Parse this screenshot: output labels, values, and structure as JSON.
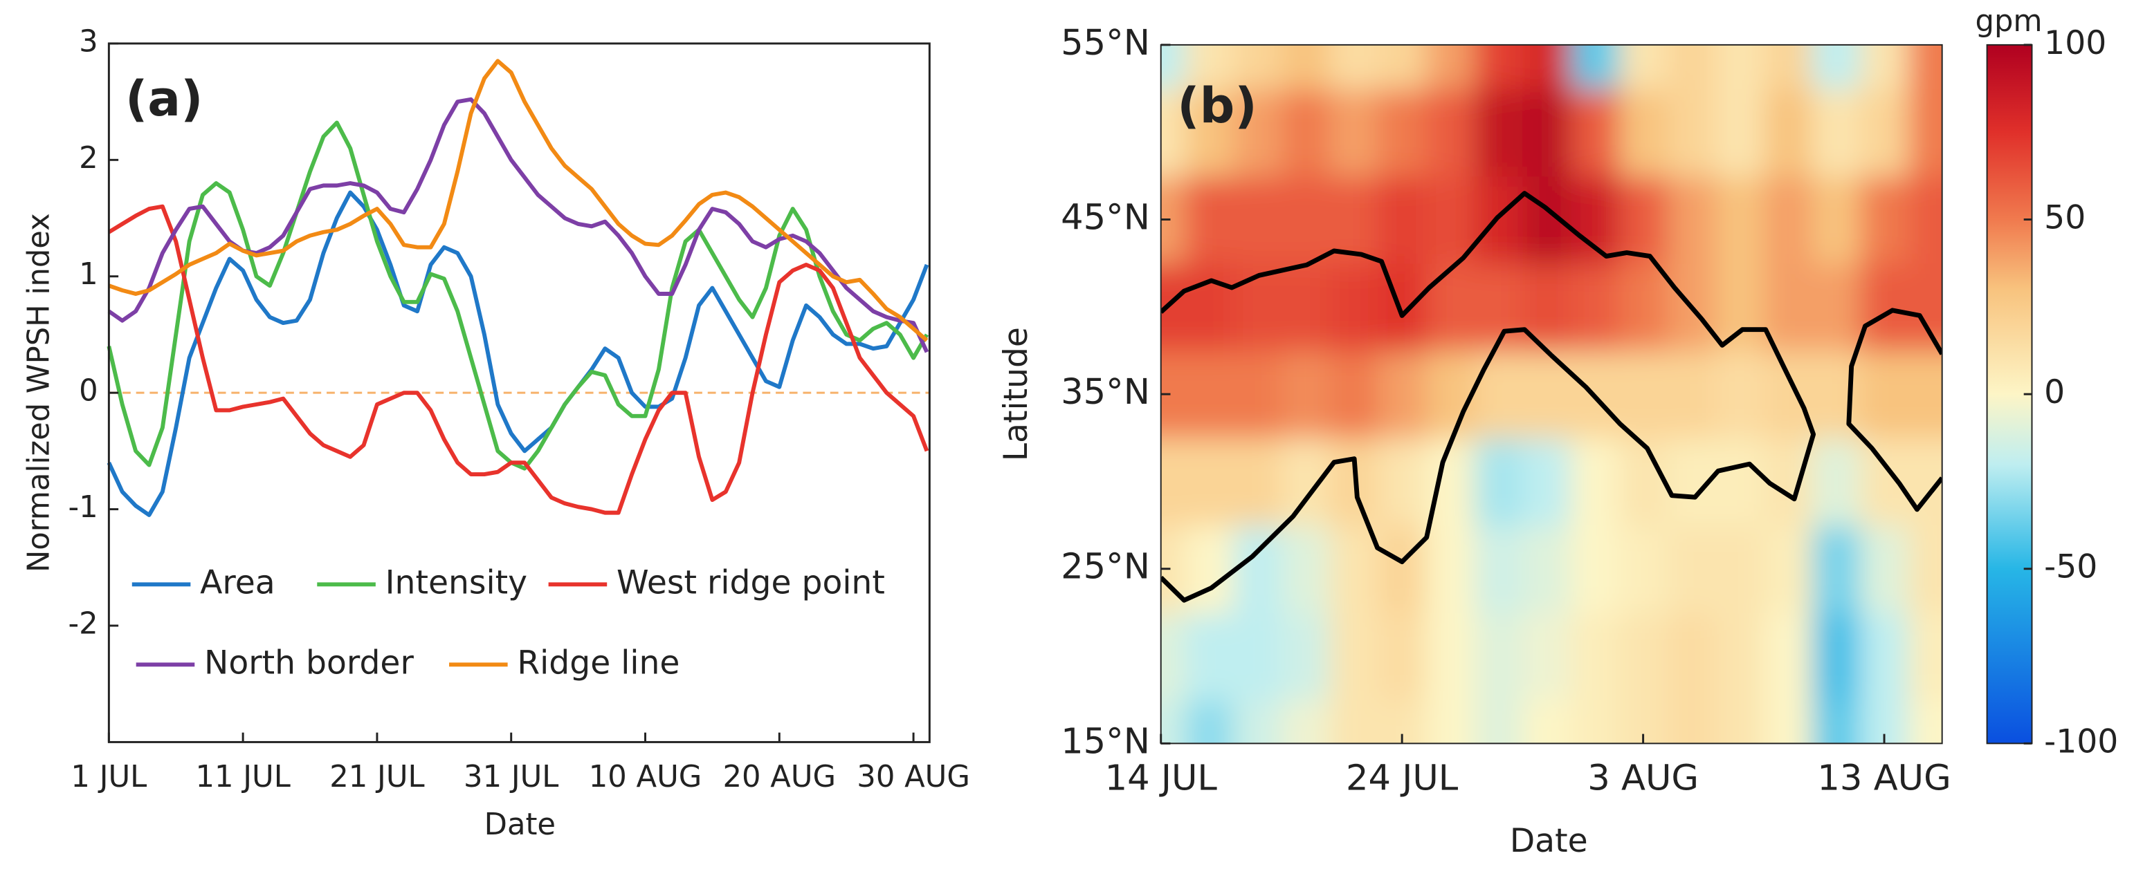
{
  "chart_data": [
    {
      "type": "line",
      "annotation": "(a)",
      "xlabel": "Date",
      "ylabel": "Normalized WPSH index",
      "x": [
        0,
        1,
        2,
        3,
        4,
        5,
        6,
        7,
        8,
        9,
        10,
        11,
        12,
        13,
        14,
        15,
        16,
        17,
        18,
        19,
        20,
        21,
        22,
        23,
        24,
        25,
        26,
        27,
        28,
        29,
        30,
        31,
        32,
        33,
        34,
        35,
        36,
        37,
        38,
        39,
        40,
        41,
        42,
        43,
        44,
        45,
        46,
        47,
        48,
        49,
        50,
        51,
        52,
        53,
        54,
        55,
        56,
        57,
        58,
        59,
        60,
        61
      ],
      "xlim": [
        0,
        61.2
      ],
      "xticks": [
        {
          "value": 0,
          "label": "1 JUL"
        },
        {
          "value": 10,
          "label": "11 JUL"
        },
        {
          "value": 20,
          "label": "21 JUL"
        },
        {
          "value": 30,
          "label": "31 JUL"
        },
        {
          "value": 40,
          "label": "10 AUG"
        },
        {
          "value": 50,
          "label": "20 AUG"
        },
        {
          "value": 60,
          "label": "30 AUG"
        }
      ],
      "ylim": [
        -3,
        3
      ],
      "yticks": [
        -2,
        -1,
        0,
        1,
        2,
        3
      ],
      "hline": 0,
      "hline_color": "#f6b26b",
      "series": [
        {
          "name": "Area",
          "color": "#1f78c8",
          "values": [
            -0.6,
            -0.85,
            -0.97,
            -1.05,
            -0.85,
            -0.3,
            0.3,
            0.6,
            0.9,
            1.15,
            1.05,
            0.8,
            0.65,
            0.6,
            0.62,
            0.8,
            1.2,
            1.5,
            1.72,
            1.6,
            1.4,
            1.1,
            0.75,
            0.7,
            1.1,
            1.25,
            1.2,
            1.0,
            0.5,
            -0.1,
            -0.35,
            -0.5,
            -0.4,
            -0.3,
            -0.1,
            0.05,
            0.2,
            0.38,
            0.3,
            0.0,
            -0.12,
            -0.12,
            -0.05,
            0.3,
            0.75,
            0.9,
            0.7,
            0.5,
            0.3,
            0.1,
            0.05,
            0.45,
            0.75,
            0.65,
            0.5,
            0.42,
            0.42,
            0.38,
            0.4,
            0.6,
            0.8,
            1.1
          ]
        },
        {
          "name": "Intensity",
          "color": "#4cbb4a",
          "values": [
            0.4,
            -0.1,
            -0.5,
            -0.62,
            -0.3,
            0.5,
            1.3,
            1.7,
            1.8,
            1.72,
            1.4,
            1.0,
            0.92,
            1.2,
            1.55,
            1.9,
            2.2,
            2.32,
            2.1,
            1.7,
            1.3,
            1.0,
            0.78,
            0.78,
            1.02,
            0.98,
            0.7,
            0.3,
            -0.1,
            -0.5,
            -0.6,
            -0.65,
            -0.5,
            -0.3,
            -0.1,
            0.05,
            0.18,
            0.15,
            -0.1,
            -0.2,
            -0.2,
            0.2,
            0.9,
            1.3,
            1.4,
            1.2,
            1.0,
            0.8,
            0.65,
            0.9,
            1.35,
            1.58,
            1.4,
            1.0,
            0.7,
            0.5,
            0.45,
            0.55,
            0.6,
            0.5,
            0.3,
            0.5
          ]
        },
        {
          "name": "West ridge point",
          "color": "#e8332c",
          "values": [
            1.38,
            1.45,
            1.52,
            1.58,
            1.6,
            1.3,
            0.8,
            0.3,
            -0.15,
            -0.15,
            -0.12,
            -0.1,
            -0.08,
            -0.05,
            -0.2,
            -0.35,
            -0.45,
            -0.5,
            -0.55,
            -0.45,
            -0.1,
            -0.05,
            0.0,
            0.0,
            -0.15,
            -0.4,
            -0.6,
            -0.7,
            -0.7,
            -0.68,
            -0.6,
            -0.6,
            -0.75,
            -0.9,
            -0.95,
            -0.98,
            -1.0,
            -1.03,
            -1.03,
            -0.7,
            -0.4,
            -0.15,
            0.0,
            0.0,
            -0.55,
            -0.92,
            -0.85,
            -0.6,
            0.0,
            0.5,
            0.95,
            1.05,
            1.1,
            1.05,
            0.9,
            0.6,
            0.3,
            0.15,
            0.0,
            -0.1,
            -0.2,
            -0.5
          ]
        },
        {
          "name": "North border",
          "color": "#7d3fa6",
          "values": [
            0.7,
            0.62,
            0.7,
            0.9,
            1.2,
            1.4,
            1.58,
            1.6,
            1.45,
            1.3,
            1.22,
            1.2,
            1.25,
            1.35,
            1.55,
            1.75,
            1.78,
            1.78,
            1.8,
            1.78,
            1.72,
            1.58,
            1.55,
            1.75,
            2.0,
            2.3,
            2.5,
            2.52,
            2.4,
            2.2,
            2.0,
            1.85,
            1.7,
            1.6,
            1.5,
            1.45,
            1.43,
            1.47,
            1.35,
            1.2,
            1.0,
            0.85,
            0.85,
            1.1,
            1.4,
            1.58,
            1.55,
            1.45,
            1.3,
            1.25,
            1.32,
            1.35,
            1.3,
            1.2,
            1.05,
            0.9,
            0.8,
            0.7,
            0.65,
            0.62,
            0.6,
            0.35
          ]
        },
        {
          "name": "Ridge line",
          "color": "#f28a14",
          "values": [
            0.92,
            0.88,
            0.85,
            0.88,
            0.95,
            1.02,
            1.1,
            1.15,
            1.2,
            1.28,
            1.22,
            1.18,
            1.2,
            1.22,
            1.3,
            1.35,
            1.38,
            1.4,
            1.45,
            1.52,
            1.58,
            1.45,
            1.27,
            1.25,
            1.25,
            1.45,
            1.9,
            2.4,
            2.7,
            2.85,
            2.75,
            2.5,
            2.3,
            2.1,
            1.95,
            1.85,
            1.75,
            1.6,
            1.45,
            1.35,
            1.28,
            1.27,
            1.35,
            1.48,
            1.62,
            1.7,
            1.72,
            1.68,
            1.6,
            1.5,
            1.4,
            1.3,
            1.2,
            1.1,
            1.0,
            0.95,
            0.97,
            0.85,
            0.72,
            0.65,
            0.55,
            0.45
          ]
        }
      ]
    },
    {
      "type": "heatmap",
      "annotation": "(b)",
      "xlabel": "Date",
      "ylabel": "Latitude",
      "colorbar_label": "gpm",
      "x": [
        0,
        2,
        4,
        6,
        8,
        10,
        12,
        14,
        16,
        18,
        20,
        22,
        24,
        26,
        28,
        30,
        32
      ],
      "y": [
        15,
        20,
        25,
        30,
        35,
        40,
        45,
        50,
        55
      ],
      "z": [
        [
          -15,
          -30,
          -15,
          -5,
          10,
          10,
          0,
          -10,
          0,
          5,
          10,
          15,
          10,
          0,
          -40,
          -20,
          0
        ],
        [
          -10,
          -20,
          -20,
          -15,
          10,
          15,
          0,
          -10,
          -5,
          5,
          10,
          15,
          10,
          0,
          -45,
          -20,
          5
        ],
        [
          10,
          0,
          -20,
          -10,
          10,
          20,
          0,
          -15,
          -10,
          0,
          5,
          10,
          10,
          5,
          -35,
          -10,
          10
        ],
        [
          20,
          20,
          20,
          10,
          20,
          10,
          0,
          -25,
          -20,
          0,
          10,
          5,
          5,
          10,
          -10,
          10,
          10
        ],
        [
          50,
          50,
          50,
          45,
          50,
          40,
          30,
          20,
          20,
          20,
          20,
          20,
          15,
          20,
          20,
          30,
          30
        ],
        [
          70,
          70,
          65,
          65,
          70,
          75,
          60,
          60,
          65,
          60,
          50,
          40,
          30,
          40,
          40,
          60,
          60
        ],
        [
          40,
          60,
          60,
          60,
          60,
          70,
          65,
          80,
          95,
          85,
          60,
          40,
          30,
          40,
          30,
          50,
          60
        ],
        [
          10,
          30,
          40,
          50,
          40,
          50,
          60,
          90,
          95,
          60,
          30,
          20,
          10,
          30,
          10,
          20,
          50
        ],
        [
          -20,
          10,
          20,
          30,
          15,
          20,
          40,
          70,
          80,
          -40,
          10,
          20,
          10,
          20,
          -20,
          10,
          50
        ]
      ],
      "xlim": [
        0,
        32.4
      ],
      "xticks": [
        {
          "value": 0,
          "label": "14 JUL"
        },
        {
          "value": 10,
          "label": "24 JUL"
        },
        {
          "value": 20,
          "label": "3 AUG"
        },
        {
          "value": 30,
          "label": "13 AUG"
        }
      ],
      "ylim": [
        15,
        55
      ],
      "yticks": [
        {
          "value": 15,
          "label": "15°N"
        },
        {
          "value": 25,
          "label": "25°N"
        },
        {
          "value": 35,
          "label": "35°N"
        },
        {
          "value": 45,
          "label": "45°N"
        },
        {
          "value": 55,
          "label": "55°N"
        }
      ],
      "clim": [
        -100,
        100
      ],
      "cticks": [
        -100,
        -50,
        0,
        50,
        100
      ],
      "colorscale": [
        [
          -100,
          "#0a4fe0"
        ],
        [
          -50,
          "#27b6e6"
        ],
        [
          -20,
          "#bfeef0"
        ],
        [
          0,
          "#fdf5c6"
        ],
        [
          30,
          "#f8c37e"
        ],
        [
          50,
          "#f07a4e"
        ],
        [
          75,
          "#e0302a"
        ],
        [
          100,
          "#b00020"
        ]
      ],
      "contour_color": "#000000",
      "contours": [
        {
          "x": [
            0,
            0.96,
            2.09,
            2.94,
            4.07,
            6.05,
            7.18,
            8.31,
            9.15,
            10.0,
            11.13,
            12.54,
            13.95,
            15.08,
            15.93,
            17.34,
            18.47,
            19.32,
            20.28,
            21.3,
            22.43,
            23.28,
            24.12,
            25.08,
            25.82,
            26.67,
            27.06,
            26.27,
            25.25,
            24.41,
            23.11,
            22.15,
            21.19,
            20.17,
            19.04,
            17.63,
            16.21,
            15.08,
            14.24,
            13.39,
            12.54,
            11.69,
            11.02,
            10.0,
            8.98,
            8.14,
            8.02,
            7.18,
            5.48,
            3.79,
            2.09,
            0.96,
            0
          ],
          "y": [
            39.7,
            40.9,
            41.5,
            41.1,
            41.8,
            42.4,
            43.2,
            43.0,
            42.6,
            39.5,
            41.1,
            42.8,
            45.1,
            46.5,
            45.7,
            44.1,
            42.9,
            43.1,
            42.9,
            41.1,
            39.3,
            37.8,
            38.7,
            38.7,
            36.6,
            34.2,
            32.7,
            29.0,
            29.9,
            31.0,
            30.6,
            29.1,
            29.2,
            31.9,
            33.3,
            35.4,
            37.2,
            38.7,
            38.6,
            36.4,
            34.0,
            31.1,
            26.8,
            25.4,
            26.2,
            29.1,
            31.3,
            31.1,
            28.0,
            25.7,
            23.9,
            23.2,
            24.5
          ]
        },
        {
          "x": [
            32.4,
            31.47,
            30.34,
            29.21,
            28.64,
            28.53,
            29.49,
            30.62,
            31.36,
            32.4
          ],
          "y": [
            37.3,
            39.5,
            39.8,
            38.9,
            36.6,
            33.3,
            31.9,
            29.9,
            28.4,
            30.2
          ]
        }
      ]
    }
  ]
}
